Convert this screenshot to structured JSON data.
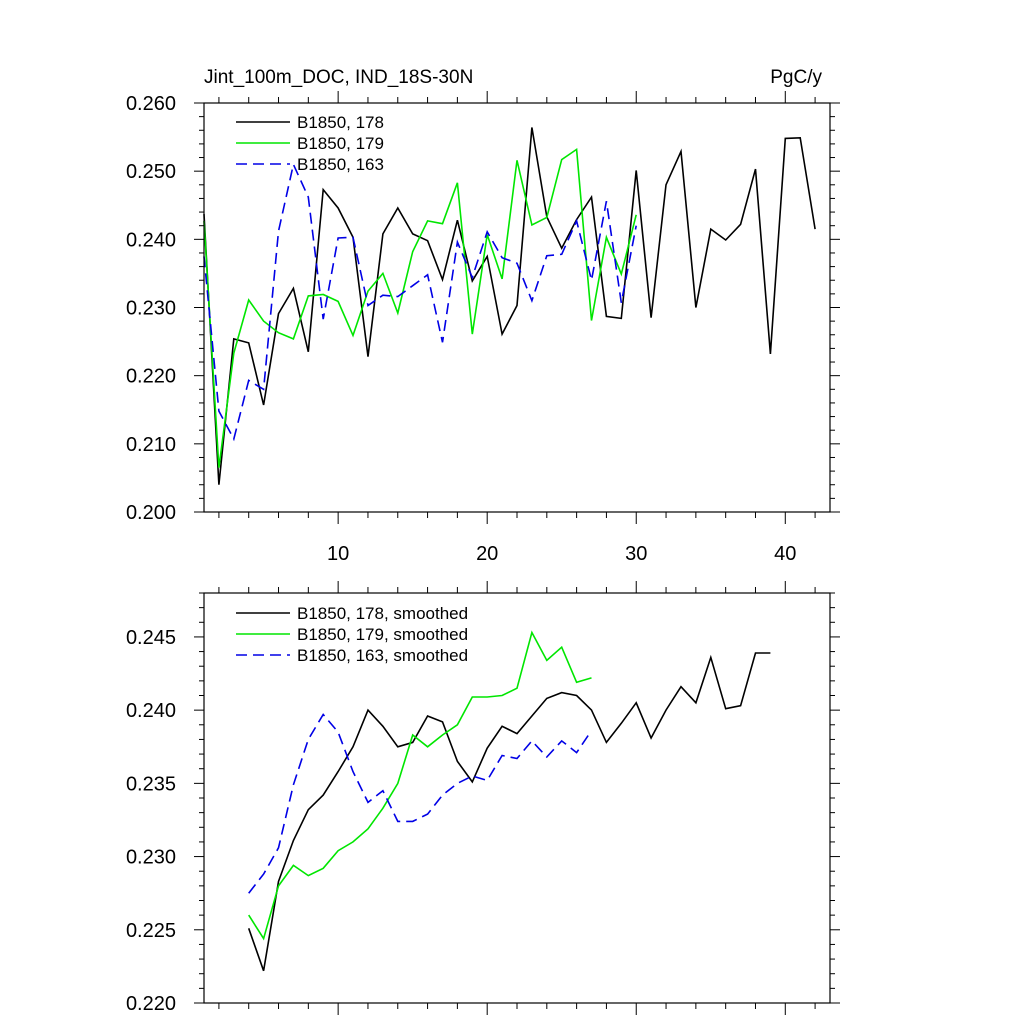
{
  "colors": {
    "series_178": "#000000",
    "series_179": "#00e600",
    "series_163": "#0000e6"
  },
  "chart_data": [
    {
      "type": "line",
      "title": "Jint_100m_DOC, IND_18S-30N",
      "units": "PgC/y",
      "xlabel": "",
      "ylabel": "",
      "xlim": [
        1,
        43
      ],
      "ylim": [
        0.2,
        0.26
      ],
      "xticks": [
        10,
        20,
        30,
        40
      ],
      "xtick_labels": [
        "10",
        "20",
        "30",
        "40"
      ],
      "yticks": [
        0.2,
        0.21,
        0.22,
        0.23,
        0.24,
        0.25,
        0.26
      ],
      "ytick_labels": [
        "0.200",
        "0.210",
        "0.220",
        "0.230",
        "0.240",
        "0.250",
        "0.260"
      ],
      "legend_position": "top-left",
      "series": [
        {
          "name": "B1850, 178",
          "color": "#000000",
          "dash": "solid",
          "x": [
            1,
            2,
            3,
            4,
            5,
            6,
            7,
            8,
            9,
            10,
            11,
            12,
            13,
            14,
            15,
            16,
            17,
            18,
            19,
            20,
            21,
            22,
            23,
            24,
            25,
            26,
            27,
            28,
            29,
            30,
            31,
            32,
            33,
            34,
            35,
            36,
            37,
            38,
            39,
            40,
            41,
            42
          ],
          "y": [
            0.2437,
            0.204,
            0.2254,
            0.2248,
            0.2157,
            0.2291,
            0.2328,
            0.2235,
            0.2473,
            0.2446,
            0.2403,
            0.2228,
            0.2408,
            0.2446,
            0.2408,
            0.2398,
            0.2341,
            0.2428,
            0.2339,
            0.2375,
            0.2261,
            0.2303,
            0.2564,
            0.2433,
            0.2387,
            0.2429,
            0.2462,
            0.2287,
            0.2284,
            0.2501,
            0.2285,
            0.248,
            0.2529,
            0.23,
            0.2415,
            0.2399,
            0.2422,
            0.2503,
            0.2232,
            0.2548,
            0.2549,
            0.2415
          ]
        },
        {
          "name": "B1850, 179",
          "color": "#00e600",
          "dash": "solid",
          "x": [
            1,
            2,
            3,
            4,
            5,
            6,
            7,
            8,
            9,
            10,
            11,
            12,
            13,
            14,
            15,
            16,
            17,
            18,
            19,
            20,
            21,
            22,
            23,
            24,
            25,
            26,
            27,
            28,
            29,
            30
          ],
          "y": [
            0.2427,
            0.2065,
            0.2233,
            0.2311,
            0.228,
            0.2263,
            0.2254,
            0.2317,
            0.2319,
            0.2309,
            0.2259,
            0.2324,
            0.235,
            0.2292,
            0.2382,
            0.2427,
            0.2423,
            0.2483,
            0.2261,
            0.2407,
            0.2342,
            0.2516,
            0.2421,
            0.2432,
            0.2517,
            0.2532,
            0.2281,
            0.2403,
            0.2349,
            0.2436
          ]
        },
        {
          "name": "B1850, 163",
          "color": "#0000e6",
          "dash": "dashed",
          "x": [
            1,
            2,
            3,
            4,
            5,
            6,
            7,
            8,
            9,
            10,
            11,
            12,
            13,
            14,
            15,
            16,
            17,
            18,
            19,
            20,
            21,
            22,
            23,
            24,
            25,
            26,
            27,
            28,
            29,
            30
          ],
          "y": [
            0.2375,
            0.2148,
            0.2107,
            0.2193,
            0.218,
            0.2412,
            0.251,
            0.2462,
            0.2283,
            0.2402,
            0.2403,
            0.2303,
            0.2318,
            0.2316,
            0.2332,
            0.2348,
            0.2249,
            0.2396,
            0.2344,
            0.2411,
            0.2373,
            0.2365,
            0.231,
            0.2376,
            0.2378,
            0.2427,
            0.234,
            0.2456,
            0.2307,
            0.242
          ]
        }
      ]
    },
    {
      "type": "line",
      "title": "",
      "xlabel": "",
      "ylabel": "",
      "xlim": [
        1,
        43
      ],
      "ylim": [
        0.22,
        0.248
      ],
      "xticks": [
        10,
        20,
        30,
        40
      ],
      "xtick_labels": [
        "",
        "",
        "",
        ""
      ],
      "yticks": [
        0.22,
        0.225,
        0.23,
        0.235,
        0.24,
        0.245
      ],
      "ytick_labels": [
        "0.220",
        "0.225",
        "0.230",
        "0.235",
        "0.240",
        "0.245"
      ],
      "legend_position": "top-left",
      "series": [
        {
          "name": "B1850, 178, smoothed",
          "color": "#000000",
          "dash": "solid",
          "x": [
            4,
            5,
            6,
            7,
            8,
            9,
            10,
            11,
            12,
            13,
            14,
            15,
            16,
            17,
            18,
            19,
            20,
            21,
            22,
            23,
            24,
            25,
            26,
            27,
            28,
            29,
            30,
            31,
            32,
            33,
            34,
            35,
            36,
            37,
            38,
            39
          ],
          "y": [
            0.2251,
            0.2222,
            0.2283,
            0.2311,
            0.2332,
            0.2342,
            0.2358,
            0.2375,
            0.24,
            0.2389,
            0.2375,
            0.2378,
            0.2396,
            0.2392,
            0.2365,
            0.2351,
            0.2374,
            0.2389,
            0.2384,
            0.2396,
            0.2408,
            0.2412,
            0.241,
            0.24,
            0.2378,
            0.2391,
            0.2405,
            0.2381,
            0.24,
            0.2416,
            0.2405,
            0.2436,
            0.2401,
            0.2403,
            0.2439,
            0.2439
          ]
        },
        {
          "name": "B1850, 179, smoothed",
          "color": "#00e600",
          "dash": "solid",
          "x": [
            4,
            5,
            6,
            7,
            8,
            9,
            10,
            11,
            12,
            13,
            14,
            15,
            16,
            17,
            18,
            19,
            20,
            21,
            22,
            23,
            24,
            25,
            26,
            27
          ],
          "y": [
            0.226,
            0.2244,
            0.228,
            0.2294,
            0.2287,
            0.2292,
            0.2304,
            0.231,
            0.2319,
            0.2333,
            0.235,
            0.2383,
            0.2375,
            0.2383,
            0.239,
            0.2409,
            0.2409,
            0.241,
            0.2415,
            0.2453,
            0.2434,
            0.2443,
            0.2419,
            0.2422
          ]
        },
        {
          "name": "B1850, 163, smoothed",
          "color": "#0000e6",
          "dash": "dashed",
          "x": [
            4,
            5,
            6,
            7,
            8,
            9,
            10,
            11,
            12,
            13,
            14,
            15,
            16,
            17,
            18,
            19,
            20,
            21,
            22,
            23,
            24,
            25,
            26,
            27
          ],
          "y": [
            0.2275,
            0.2288,
            0.2306,
            0.2349,
            0.238,
            0.2397,
            0.2385,
            0.2358,
            0.2337,
            0.2345,
            0.2324,
            0.2324,
            0.2329,
            0.2342,
            0.235,
            0.2355,
            0.2352,
            0.2369,
            0.2367,
            0.2379,
            0.2368,
            0.2379,
            0.2371,
            0.2386
          ]
        }
      ]
    }
  ]
}
